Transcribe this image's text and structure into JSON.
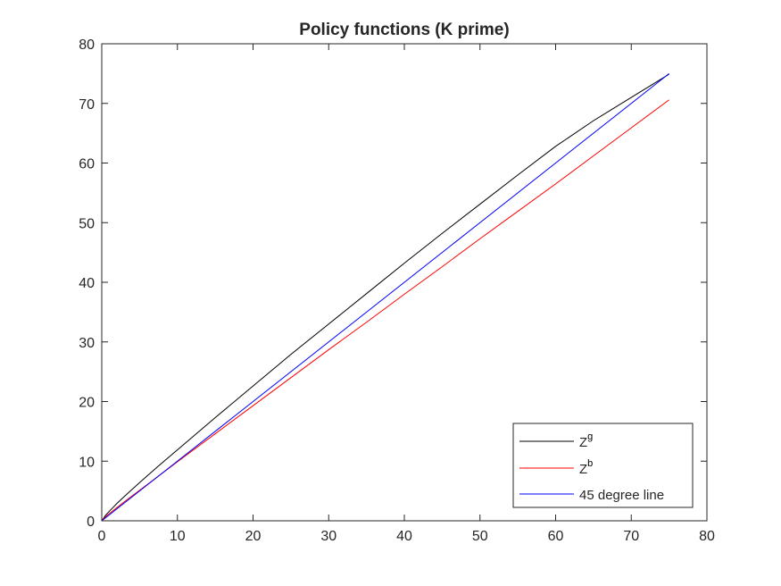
{
  "chart_data": {
    "type": "line",
    "title": "Policy functions (K prime)",
    "xlabel": "",
    "ylabel": "",
    "xlim": [
      0,
      80
    ],
    "ylim": [
      0,
      80
    ],
    "xticks": [
      0,
      10,
      20,
      30,
      40,
      50,
      60,
      70,
      80
    ],
    "yticks": [
      0,
      10,
      20,
      30,
      40,
      50,
      60,
      70,
      80
    ],
    "grid": false,
    "legend_position": "bottom-right",
    "series": [
      {
        "name": "Z^g",
        "legend_base": "Z",
        "legend_sup": "g",
        "color": "#000000",
        "x": [
          0,
          0.5,
          1,
          2,
          3,
          5,
          7.5,
          10,
          15,
          20,
          25,
          30,
          35,
          40,
          45,
          50,
          55,
          60,
          65,
          70,
          75
        ],
        "y": [
          0,
          0.9,
          1.6,
          2.9,
          4.1,
          6.4,
          9.2,
          11.9,
          17.3,
          22.6,
          27.9,
          33.0,
          38.1,
          43.2,
          48.2,
          53.1,
          58.0,
          62.8,
          67.1,
          71.0,
          74.9
        ]
      },
      {
        "name": "Z^b",
        "legend_base": "Z",
        "legend_sup": "b",
        "color": "#ff0000",
        "x": [
          0,
          0.5,
          1,
          2,
          3,
          5,
          7.5,
          10,
          15,
          20,
          25,
          30,
          35,
          40,
          45,
          50,
          55,
          60,
          65,
          70,
          75
        ],
        "y": [
          0,
          0.65,
          1.2,
          2.2,
          3.2,
          5.1,
          7.5,
          9.9,
          14.6,
          19.3,
          24.0,
          28.7,
          33.3,
          38.0,
          42.6,
          47.3,
          51.9,
          56.5,
          61.2,
          65.9,
          70.6
        ]
      },
      {
        "name": "45 degree line",
        "color": "#0000ff",
        "x": [
          0,
          75
        ],
        "y": [
          0,
          75
        ]
      }
    ]
  }
}
